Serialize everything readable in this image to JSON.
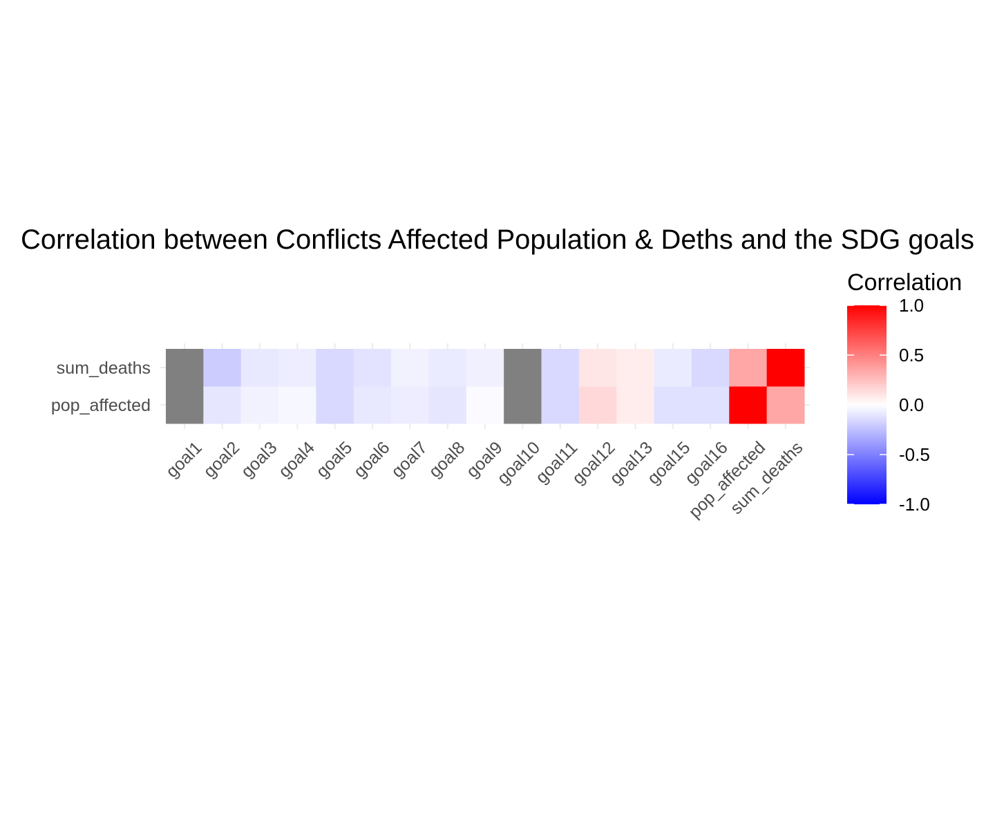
{
  "chart_data": {
    "type": "heatmap",
    "title": "Correlation between Conflicts Affected Population & Deths and the SDG goals",
    "xlabel": "",
    "ylabel": "",
    "x_categories": [
      "goal1",
      "goal2",
      "goal3",
      "goal4",
      "goal5",
      "goal6",
      "goal7",
      "goal8",
      "goal9",
      "goal10",
      "goal11",
      "goal12",
      "goal13",
      "goal15",
      "goal16",
      "pop_affected",
      "sum_deaths"
    ],
    "y_categories": [
      "pop_affected",
      "sum_deaths"
    ],
    "values": {
      "pop_affected": [
        null,
        -0.1,
        -0.05,
        -0.03,
        -0.15,
        -0.09,
        -0.07,
        -0.1,
        -0.02,
        null,
        -0.15,
        0.15,
        0.07,
        -0.12,
        -0.12,
        1.0,
        0.35
      ],
      "sum_deaths": [
        null,
        -0.2,
        -0.09,
        -0.07,
        -0.15,
        -0.11,
        -0.05,
        -0.08,
        -0.06,
        null,
        -0.15,
        0.1,
        0.07,
        -0.08,
        -0.15,
        0.35,
        1.0
      ]
    },
    "na_color": "#808080",
    "color_scale": {
      "low": "#0000ff",
      "mid": "#ffffff",
      "high": "#ff0000",
      "limits": [
        -1,
        1
      ]
    },
    "legend": {
      "title": "Correlation",
      "position": "right",
      "ticks": [
        "1.0",
        "0.5",
        "0.0",
        "-0.5",
        "-1.0"
      ]
    },
    "grid": true
  }
}
